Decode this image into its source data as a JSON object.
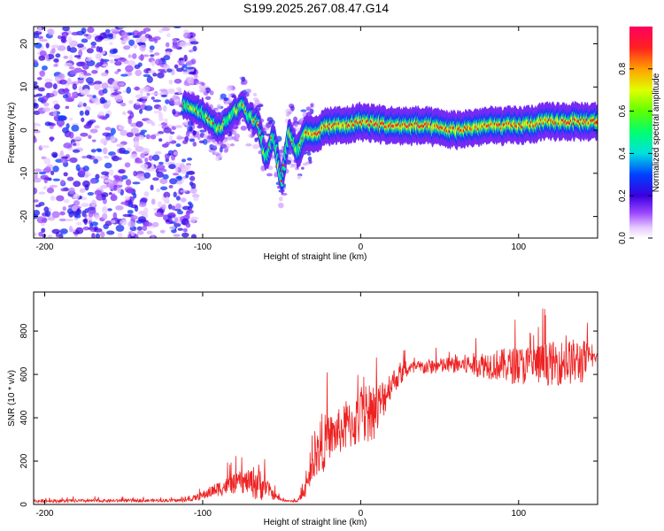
{
  "title": "S199.2025.267.08.47.G14",
  "chart_data": [
    {
      "type": "heatmap",
      "name": "spectrogram",
      "xlabel": "Height of straight line (km)",
      "ylabel": "Frequency (Hz)",
      "xlim": [
        -207,
        150
      ],
      "ylim": [
        -25,
        24
      ],
      "xticks": [
        -200,
        -100,
        0,
        100
      ],
      "yticks": [
        -20,
        -10,
        0,
        10,
        20
      ],
      "ridge": {
        "description_points_height_km": [
          -110,
          -100,
          -90,
          -80,
          -75,
          -70,
          -65,
          -60,
          -55,
          -50,
          -45,
          -40,
          -35,
          -30,
          -20,
          -10,
          0,
          20,
          40,
          60,
          80,
          100,
          120,
          150
        ],
        "frequency_hz": [
          6,
          4,
          0,
          4,
          6,
          3,
          2,
          -7,
          -1,
          -12,
          0,
          -5,
          -1,
          -1,
          1,
          1,
          2,
          1,
          1,
          0,
          1,
          1,
          2,
          2
        ]
      },
      "noise_region_km": [
        -207,
        -108
      ],
      "colorbar": {
        "label": "Normalized spectral amplitude",
        "ticks": [
          "0.0",
          "0.2",
          "0.4",
          "0.6",
          "0.8"
        ],
        "range": [
          0,
          1
        ]
      }
    },
    {
      "type": "line",
      "name": "snr",
      "xlabel": "Height of straight line (km)",
      "ylabel": "SNR (10 * v/v)",
      "xlim": [
        -207,
        150
      ],
      "ylim": [
        0,
        980
      ],
      "xticks": [
        -200,
        -100,
        0,
        100
      ],
      "yticks": [
        0,
        200,
        400,
        600,
        800
      ],
      "color": "#ee2222",
      "envelope": {
        "x": [
          -207,
          -110,
          -100,
          -90,
          -80,
          -70,
          -65,
          -60,
          -55,
          -50,
          -45,
          -40,
          -35,
          -30,
          -25,
          -20,
          -10,
          0,
          10,
          20,
          30,
          40,
          60,
          80,
          100,
          120,
          140,
          150
        ],
        "base": [
          15,
          18,
          40,
          70,
          90,
          100,
          90,
          80,
          40,
          20,
          15,
          15,
          60,
          180,
          260,
          300,
          340,
          380,
          420,
          560,
          620,
          630,
          640,
          640,
          630,
          640,
          650,
          680
        ],
        "amp": [
          15,
          15,
          40,
          70,
          90,
          110,
          200,
          90,
          40,
          15,
          8,
          10,
          60,
          120,
          300,
          200,
          220,
          250,
          250,
          120,
          70,
          70,
          80,
          130,
          180,
          200,
          220,
          30
        ]
      }
    }
  ]
}
